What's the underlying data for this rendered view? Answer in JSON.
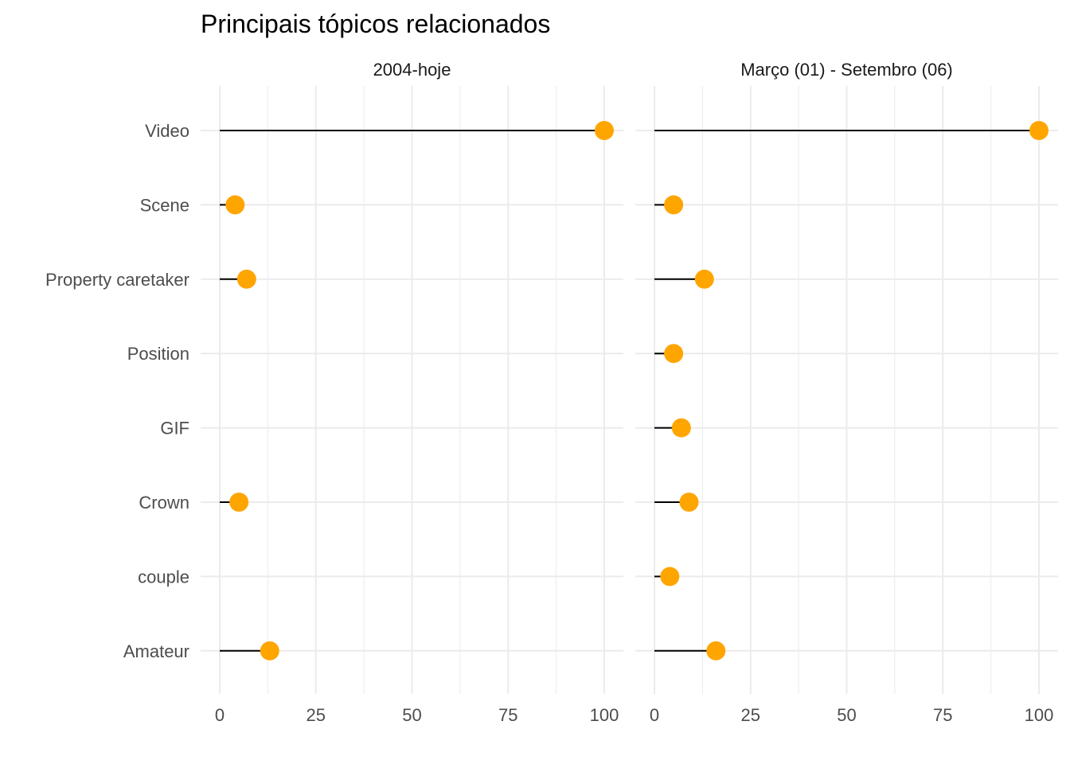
{
  "chart_data": {
    "type": "lollipop",
    "title": "Principais tópicos relacionados",
    "categories": [
      "Video",
      "Scene",
      "Property caretaker",
      "Position",
      "GIF",
      "Crown",
      "couple",
      "Amateur"
    ],
    "x_ticks": [
      "0",
      "25",
      "50",
      "75",
      "100"
    ],
    "xlim": [
      0,
      100
    ],
    "grid": true,
    "point_color": "#ffa500",
    "panels": [
      {
        "label": "2004-hoje",
        "values": [
          100,
          4,
          7,
          null,
          null,
          5,
          null,
          13
        ]
      },
      {
        "label": "Março (01) - Setembro (06)",
        "values": [
          100,
          5,
          13,
          5,
          7,
          9,
          4,
          16
        ]
      }
    ]
  }
}
